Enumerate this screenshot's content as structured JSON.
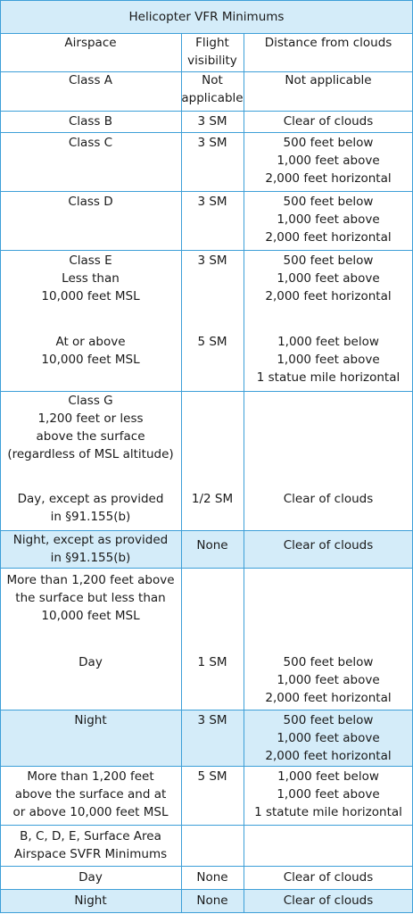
{
  "title": "Helicopter VFR Minimums",
  "header": [
    [
      [
        "Airspace"
      ]
    ],
    [
      [
        "Flight",
        "visibility"
      ]
    ],
    [
      [
        "Distance from clouds"
      ]
    ]
  ],
  "rows": [
    {
      "cells": [
        [
          [
            "Class A"
          ]
        ],
        [
          [
            "Not",
            "applicable"
          ]
        ],
        [
          [
            "Not applicable"
          ]
        ]
      ]
    },
    {
      "cells": [
        [
          [
            "Class B"
          ]
        ],
        [
          [
            "3 SM"
          ]
        ],
        [
          [
            "Clear of clouds"
          ]
        ]
      ]
    },
    {
      "cells": [
        [
          [
            "Class C"
          ]
        ],
        [
          [
            "3 SM"
          ]
        ],
        [
          [
            "500 feet below",
            "1,000 feet above",
            "2,000 feet horizontal"
          ]
        ]
      ]
    },
    {
      "cells": [
        [
          [
            "Class D"
          ]
        ],
        [
          [
            "3 SM"
          ]
        ],
        [
          [
            "500 feet below",
            "1,000 feet above",
            "2,000 feet horizontal"
          ]
        ]
      ]
    },
    {
      "cells": [
        [
          [
            "Class E",
            "Less than",
            "10,000 feet MSL"
          ],
          [
            "At or above",
            "10,000 feet MSL"
          ]
        ],
        [
          [
            "3 SM"
          ],
          [
            "5 SM"
          ]
        ],
        [
          [
            "500 feet below",
            "1,000 feet above",
            "2,000 feet horizontal"
          ],
          [
            "1,000 feet below",
            "1,000 feet above",
            "1 statue mile horizontal"
          ]
        ]
      ]
    },
    {
      "cells": [
        [
          [
            "Class G",
            "1,200 feet or less",
            "above the surface",
            "(regardless of MSL altitude)"
          ],
          [
            "Day, except as provided",
            "in §91.155(b)"
          ]
        ],
        [
          [
            "1/2 SM"
          ]
        ],
        [
          [
            "Clear of clouds"
          ]
        ]
      ]
    },
    {
      "cells": [
        [
          [
            "Night, except as provided",
            "in §91.155(b)"
          ]
        ],
        [
          [
            "None"
          ]
        ],
        [
          [
            "Clear of clouds"
          ]
        ]
      ]
    },
    {
      "cells": [
        [
          [
            "More than 1,200 feet above",
            "the surface but less than",
            "10,000 feet MSL"
          ],
          [
            "Day"
          ]
        ],
        [
          [
            "1 SM"
          ]
        ],
        [
          [
            "500 feet below",
            "1,000 feet above",
            "2,000 feet horizontal"
          ]
        ]
      ]
    },
    {
      "cells": [
        [
          [
            "Night"
          ]
        ],
        [
          [
            "3 SM"
          ]
        ],
        [
          [
            "500 feet below",
            "1,000 feet above",
            "2,000 feet horizontal"
          ]
        ]
      ]
    },
    {
      "cells": [
        [
          [
            "More than 1,200 feet",
            "above the surface and at",
            "or above 10,000 feet MSL"
          ]
        ],
        [
          [
            "5 SM"
          ]
        ],
        [
          [
            "1,000 feet below",
            "1,000 feet above",
            "1 statute mile horizontal"
          ]
        ]
      ]
    },
    {
      "cells": [
        [
          [
            "B, C, D, E, Surface Area",
            "Airspace SVFR Minimums"
          ]
        ],
        [],
        []
      ]
    },
    {
      "cells": [
        [
          [
            "Day"
          ]
        ],
        [
          [
            "None"
          ]
        ],
        [
          [
            "Clear of clouds"
          ]
        ]
      ]
    },
    {
      "cells": [
        [
          [
            "Night"
          ]
        ],
        [
          [
            "None"
          ]
        ],
        [
          [
            "Clear of clouds"
          ]
        ]
      ]
    }
  ]
}
